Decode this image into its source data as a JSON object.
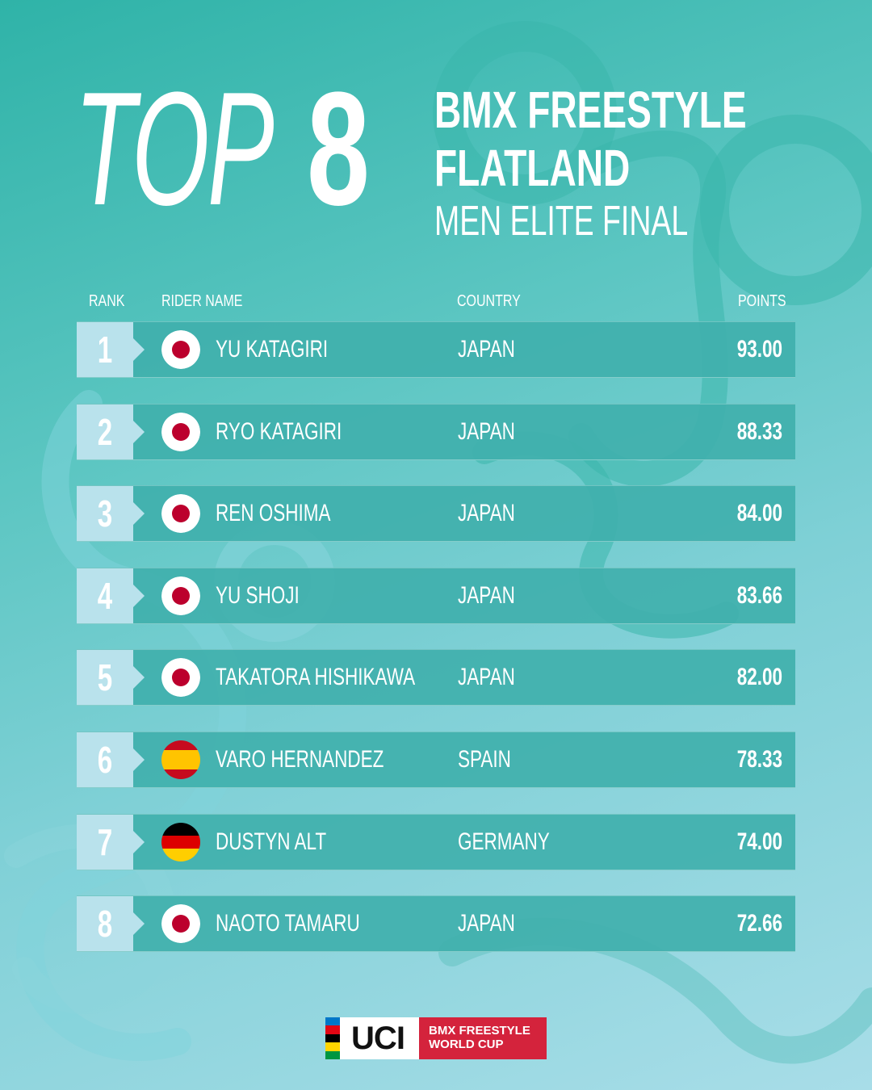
{
  "title": {
    "top": "TOP",
    "number": "8"
  },
  "event": {
    "line1": "BMX FREESTYLE",
    "line2": "FLATLAND",
    "line3": "MEN ELITE FINAL"
  },
  "headers": {
    "rank": "RANK",
    "rider": "RIDER NAME",
    "country": "COUNTRY",
    "points": "POINTS"
  },
  "rows": [
    {
      "rank": "1",
      "name": "YU KATAGIRI",
      "country": "JAPAN",
      "points": "93.00",
      "flag": "japan-flag-icon"
    },
    {
      "rank": "2",
      "name": "RYO KATAGIRI",
      "country": "JAPAN",
      "points": "88.33",
      "flag": "japan-flag-icon"
    },
    {
      "rank": "3",
      "name": "REN OSHIMA",
      "country": "JAPAN",
      "points": "84.00",
      "flag": "japan-flag-icon"
    },
    {
      "rank": "4",
      "name": "YU SHOJI",
      "country": "JAPAN",
      "points": "83.66",
      "flag": "japan-flag-icon"
    },
    {
      "rank": "5",
      "name": "TAKATORA HISHIKAWA",
      "country": "JAPAN",
      "points": "82.00",
      "flag": "japan-flag-icon"
    },
    {
      "rank": "6",
      "name": "VARO HERNANDEZ",
      "country": "SPAIN",
      "points": "78.33",
      "flag": "spain-flag-icon"
    },
    {
      "rank": "7",
      "name": "DUSTYN ALT",
      "country": "GERMANY",
      "points": "74.00",
      "flag": "germany-flag-icon"
    },
    {
      "rank": "8",
      "name": "NAOTO TAMARU",
      "country": "JAPAN",
      "points": "72.66",
      "flag": "japan-flag-icon"
    }
  ],
  "logo": {
    "uci": "UCI",
    "line1": "BMX FREESTYLE",
    "line2": "WORLD CUP"
  },
  "colors": {
    "accent_red": "#d4233c",
    "rank_box": "#b9e2ec",
    "row_bg": "#40b0ac"
  }
}
